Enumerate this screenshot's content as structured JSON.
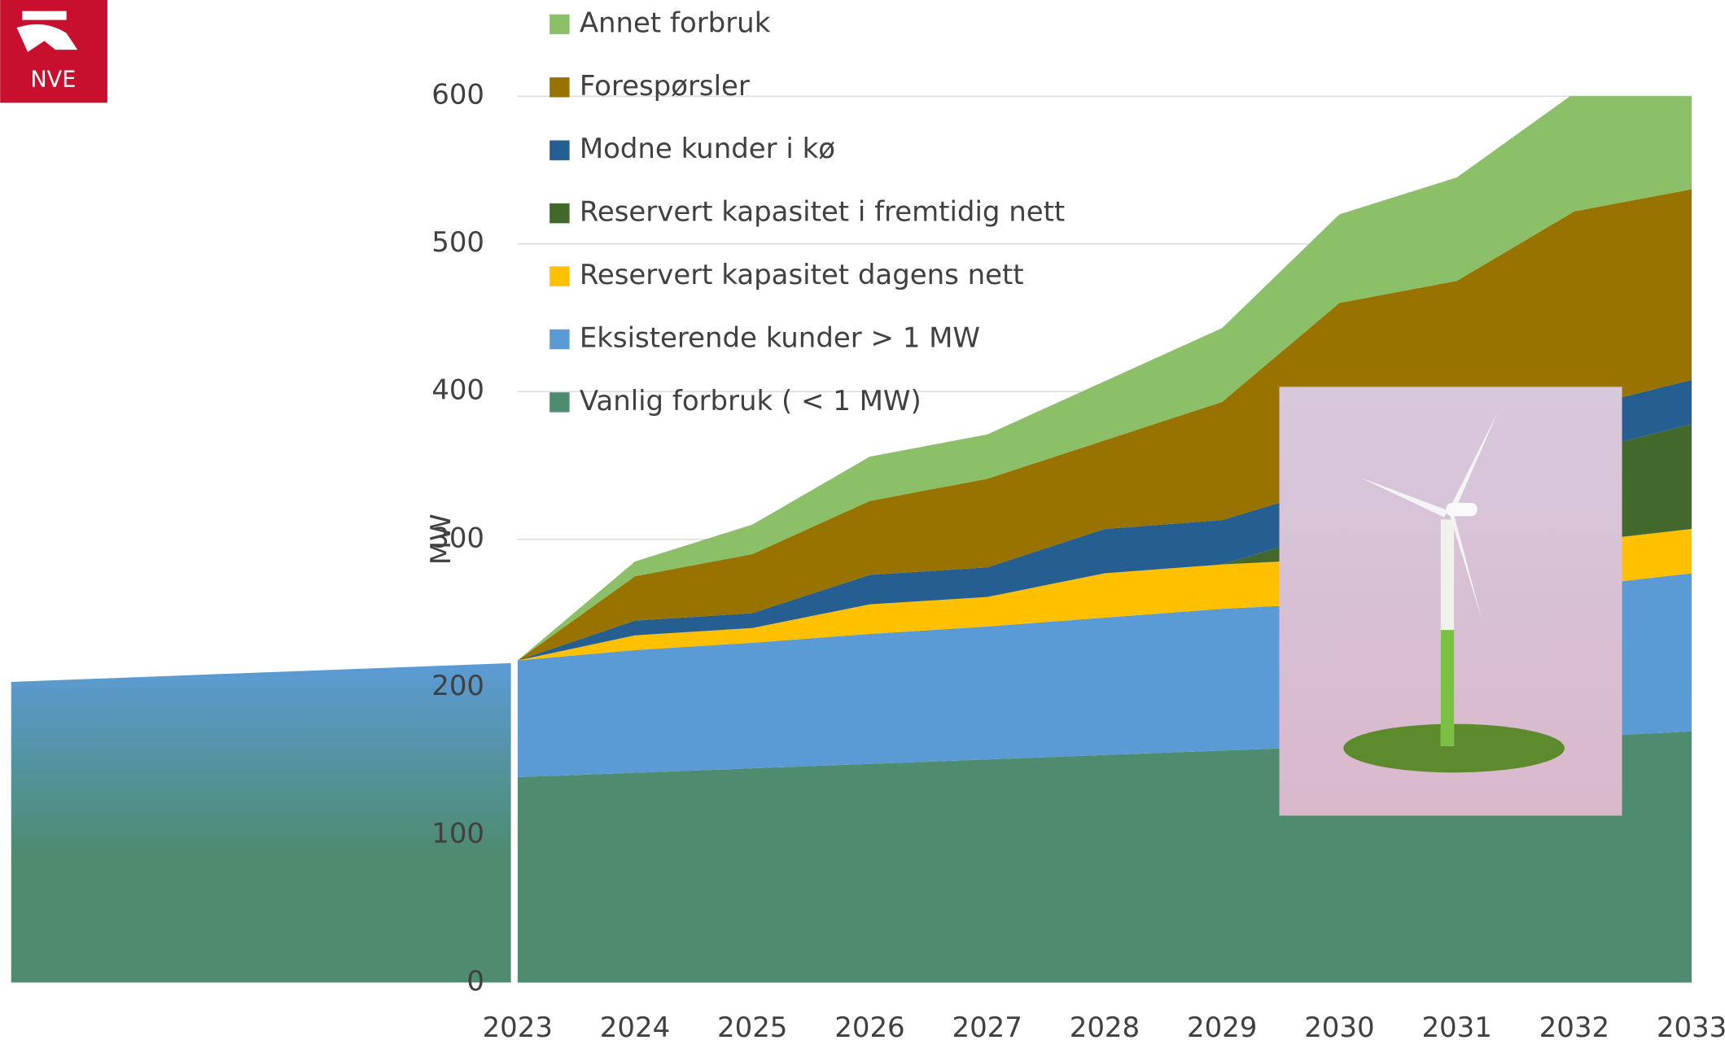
{
  "logo_text": "NVE",
  "chart_data": {
    "type": "stacked_area",
    "y_label": "MW",
    "categories": [
      "2023",
      "2024",
      "2025",
      "2026",
      "2027",
      "2028",
      "2029",
      "2030",
      "2031",
      "2032",
      "2033"
    ],
    "ylim": [
      0,
      600
    ],
    "yticks": [
      0,
      100,
      200,
      300,
      400,
      500,
      600
    ],
    "grid": true,
    "legend": "top-left",
    "series": [
      {
        "name": "Vanlig forbruk ( < 1 MW)",
        "color": "#4e8b6f",
        "values": [
          139,
          142,
          145,
          148,
          151,
          154,
          157,
          160,
          163,
          166,
          170
        ]
      },
      {
        "name": "Eksisterende kunder > 1 MW",
        "color": "#5b9bd5",
        "values": [
          79,
          83,
          85,
          88,
          90,
          93,
          96,
          97,
          99,
          102,
          107
        ]
      },
      {
        "name": "Reservert kapasitet dagens nett",
        "color": "#ffc000",
        "values": [
          0,
          10,
          10,
          20,
          20,
          30,
          30,
          30,
          30,
          30,
          30
        ]
      },
      {
        "name": "Reservert kapasitet i fremtidig nett",
        "color": "#43682b",
        "values": [
          0,
          0,
          0,
          0,
          0,
          0,
          0,
          20,
          40,
          60,
          71
        ]
      },
      {
        "name": "Modne kunder i kø",
        "color": "#255e91",
        "values": [
          0,
          10,
          10,
          20,
          20,
          30,
          30,
          30,
          30,
          30,
          30
        ]
      },
      {
        "name": "Forespørsler",
        "color": "#997300",
        "values": [
          0,
          30,
          40,
          50,
          60,
          60,
          80,
          123,
          113,
          134,
          129
        ]
      },
      {
        "name": "Annet forbruk",
        "color": "#8cc068",
        "values": [
          0,
          10,
          20,
          30,
          30,
          40,
          50,
          60,
          70,
          80,
          63
        ]
      }
    ]
  }
}
